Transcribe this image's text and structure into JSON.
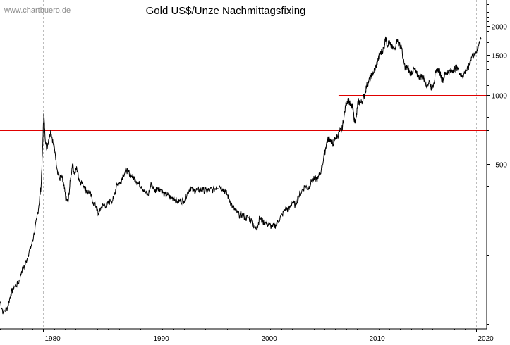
{
  "watermark": "www.chartbuero.de",
  "chart_data": {
    "type": "line",
    "title": "Gold US$/Unze Nachmittagsfixing",
    "xlabel": "",
    "ylabel": "",
    "y_scale": "log",
    "xlim": [
      1976.0,
      2021.0
    ],
    "ylim": [
      95,
      2600
    ],
    "x_ticks": [
      1980,
      1990,
      2000,
      2010,
      2020
    ],
    "x_tick_labels": [
      "1980",
      "1990",
      "2000",
      "2010",
      "2020"
    ],
    "y_ticks": [
      500,
      1000,
      1500,
      2000
    ],
    "y_tick_labels": [
      "500",
      "1000",
      "1500",
      "2000"
    ],
    "grid": "vertical dashed at decade marks",
    "colors": {
      "line": "#000000",
      "reference": "#e00000",
      "grid": "#bdbdbd"
    },
    "reference_lines": [
      {
        "value": 700,
        "x_from": 1976.0,
        "x_to": 2021.0
      },
      {
        "value": 1000,
        "x_from": 2007.3,
        "x_to": 2021.0
      }
    ],
    "series": [
      {
        "x": [
          1976.0,
          1976.3,
          1976.7,
          1977.0,
          1977.3,
          1977.7,
          1978.0,
          1978.3,
          1978.6,
          1978.9,
          1979.1,
          1979.4,
          1979.6,
          1979.8,
          1979.95,
          1980.05,
          1980.15,
          1980.3,
          1980.5,
          1980.7,
          1980.9,
          1981.1,
          1981.3,
          1981.5,
          1981.7,
          1981.9,
          1982.1,
          1982.3,
          1982.5,
          1982.7,
          1982.9,
          1983.1,
          1983.3,
          1983.5,
          1983.8,
          1984.0,
          1984.3,
          1984.6,
          1984.9,
          1985.1,
          1985.3,
          1985.6,
          1985.9,
          1986.2,
          1986.5,
          1986.8,
          1987.1,
          1987.4,
          1987.7,
          1987.9,
          1988.2,
          1988.5,
          1988.8,
          1989.1,
          1989.4,
          1989.7,
          1990.0,
          1990.3,
          1990.6,
          1990.9,
          1991.2,
          1991.5,
          1991.8,
          1992.1,
          1992.4,
          1992.7,
          1993.0,
          1993.3,
          1993.6,
          1993.9,
          1994.2,
          1994.5,
          1994.8,
          1995.1,
          1995.4,
          1995.7,
          1996.0,
          1996.3,
          1996.6,
          1996.9,
          1997.2,
          1997.5,
          1997.8,
          1998.1,
          1998.4,
          1998.7,
          1999.0,
          1999.3,
          1999.6,
          1999.8,
          2000.0,
          2000.3,
          2000.6,
          2000.9,
          2001.2,
          2001.5,
          2001.8,
          2002.1,
          2002.4,
          2002.7,
          2003.0,
          2003.3,
          2003.6,
          2003.9,
          2004.2,
          2004.5,
          2004.8,
          2005.1,
          2005.4,
          2005.7,
          2006.0,
          2006.2,
          2006.4,
          2006.6,
          2006.8,
          2007.0,
          2007.2,
          2007.4,
          2007.6,
          2007.8,
          2008.0,
          2008.2,
          2008.4,
          2008.6,
          2008.8,
          2008.95,
          2009.1,
          2009.3,
          2009.5,
          2009.7,
          2009.9,
          2010.1,
          2010.3,
          2010.5,
          2010.7,
          2010.9,
          2011.1,
          2011.3,
          2011.5,
          2011.65,
          2011.8,
          2011.95,
          2012.1,
          2012.3,
          2012.5,
          2012.7,
          2012.9,
          2013.1,
          2013.3,
          2013.5,
          2013.7,
          2013.9,
          2014.1,
          2014.3,
          2014.5,
          2014.7,
          2014.9,
          2015.1,
          2015.3,
          2015.5,
          2015.7,
          2015.9,
          2016.1,
          2016.3,
          2016.5,
          2016.7,
          2016.9,
          2017.1,
          2017.3,
          2017.5,
          2017.7,
          2017.9,
          2018.1,
          2018.3,
          2018.5,
          2018.7,
          2018.9,
          2019.1,
          2019.3,
          2019.5,
          2019.7,
          2019.9,
          2020.1,
          2020.3,
          2020.5
        ],
        "values": [
          125,
          112,
          118,
          135,
          145,
          150,
          170,
          180,
          200,
          220,
          240,
          285,
          330,
          400,
          600,
          830,
          680,
          580,
          640,
          700,
          620,
          560,
          470,
          430,
          440,
          400,
          350,
          340,
          420,
          500,
          450,
          480,
          430,
          415,
          400,
          380,
          375,
          340,
          325,
          300,
          320,
          330,
          330,
          345,
          350,
          410,
          410,
          450,
          470,
          460,
          440,
          430,
          410,
          400,
          375,
          365,
          410,
          380,
          395,
          385,
          365,
          365,
          355,
          355,
          340,
          345,
          345,
          370,
          395,
          380,
          385,
          385,
          385,
          380,
          385,
          385,
          395,
          400,
          390,
          375,
          350,
          325,
          310,
          300,
          300,
          290,
          290,
          280,
          260,
          265,
          290,
          280,
          275,
          270,
          265,
          270,
          285,
          300,
          320,
          315,
          340,
          330,
          360,
          380,
          400,
          390,
          420,
          430,
          430,
          470,
          550,
          620,
          650,
          630,
          610,
          650,
          660,
          690,
          700,
          800,
          920,
          960,
          900,
          880,
          760,
          800,
          940,
          920,
          940,
          1000,
          1100,
          1150,
          1200,
          1250,
          1300,
          1400,
          1500,
          1550,
          1600,
          1800,
          1650,
          1700,
          1650,
          1600,
          1600,
          1750,
          1650,
          1650,
          1400,
          1300,
          1320,
          1240,
          1260,
          1300,
          1240,
          1200,
          1210,
          1200,
          1150,
          1100,
          1150,
          1070,
          1130,
          1250,
          1300,
          1250,
          1150,
          1220,
          1260,
          1260,
          1270,
          1290,
          1310,
          1320,
          1250,
          1200,
          1240,
          1280,
          1300,
          1420,
          1500,
          1480,
          1580,
          1700,
          1760
        ]
      }
    ]
  }
}
